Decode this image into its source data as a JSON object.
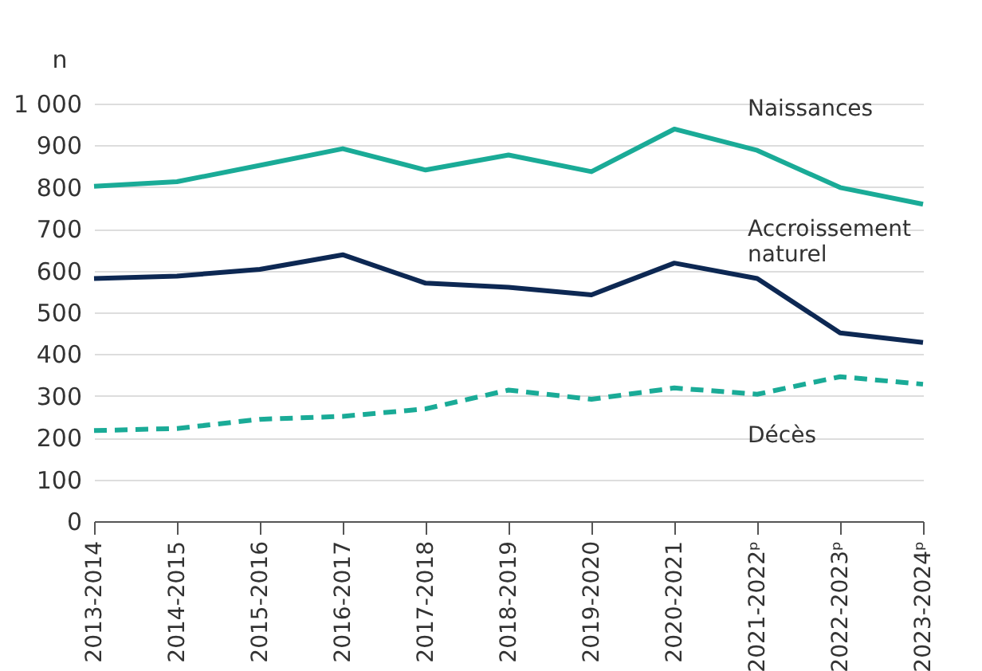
{
  "chart_data": {
    "type": "line",
    "ylabel": "n",
    "categories": [
      "2013-2014",
      "2014-2015",
      "2015-2016",
      "2016-2017",
      "2017-2018",
      "2018-2019",
      "2019-2020",
      "2020-2021",
      "2021-2022ᵖ",
      "2022-2023ᵖ",
      "2023-2024ᵖ"
    ],
    "series": [
      {
        "name": "Naissances",
        "color": "#1aab97",
        "line_style": "solid",
        "values": [
          802,
          813,
          852,
          892,
          841,
          877,
          837,
          939,
          888,
          799,
          759
        ]
      },
      {
        "name": "Accroissement naturel",
        "color": "#0d2853",
        "line_style": "solid",
        "values": [
          581,
          587,
          603,
          638,
          570,
          560,
          542,
          618,
          581,
          451,
          428
        ]
      },
      {
        "name": "Décès",
        "color": "#1aab97",
        "line_style": "dashed",
        "values": [
          217,
          222,
          244,
          251,
          269,
          314,
          292,
          319,
          304,
          346,
          328
        ]
      }
    ],
    "ylim": [
      0,
      1000
    ],
    "yticks": [
      0,
      100,
      200,
      300,
      400,
      500,
      600,
      700,
      800,
      900,
      {
        "value": 1000,
        "label": "1 000"
      }
    ],
    "grid": "y",
    "marker": "none"
  }
}
